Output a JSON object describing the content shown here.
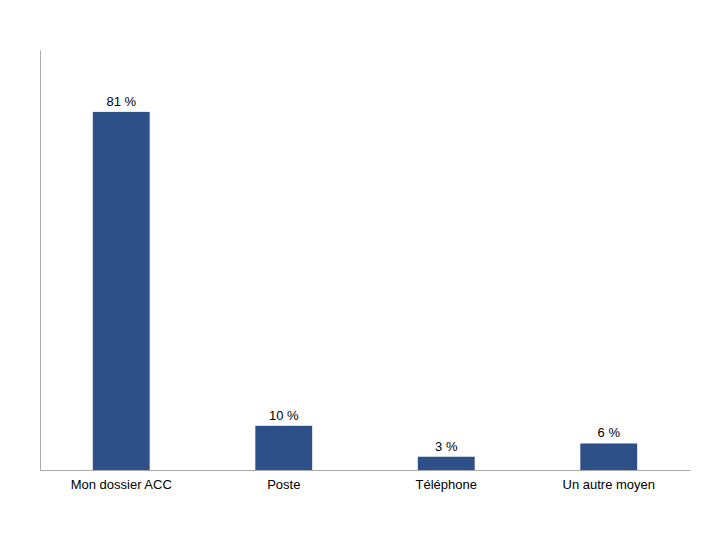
{
  "chart_data": {
    "type": "bar",
    "categories": [
      "Mon dossier ACC",
      "Poste",
      "Téléphone",
      "Un autre moyen"
    ],
    "values": [
      81,
      10,
      3,
      6
    ],
    "value_labels": [
      "81 %",
      "10 %",
      "3 %",
      "6 %"
    ],
    "data_labels": true,
    "color": "#2d5089",
    "ylim": [
      0,
      95
    ],
    "tick_labels": "x",
    "grid": false
  }
}
